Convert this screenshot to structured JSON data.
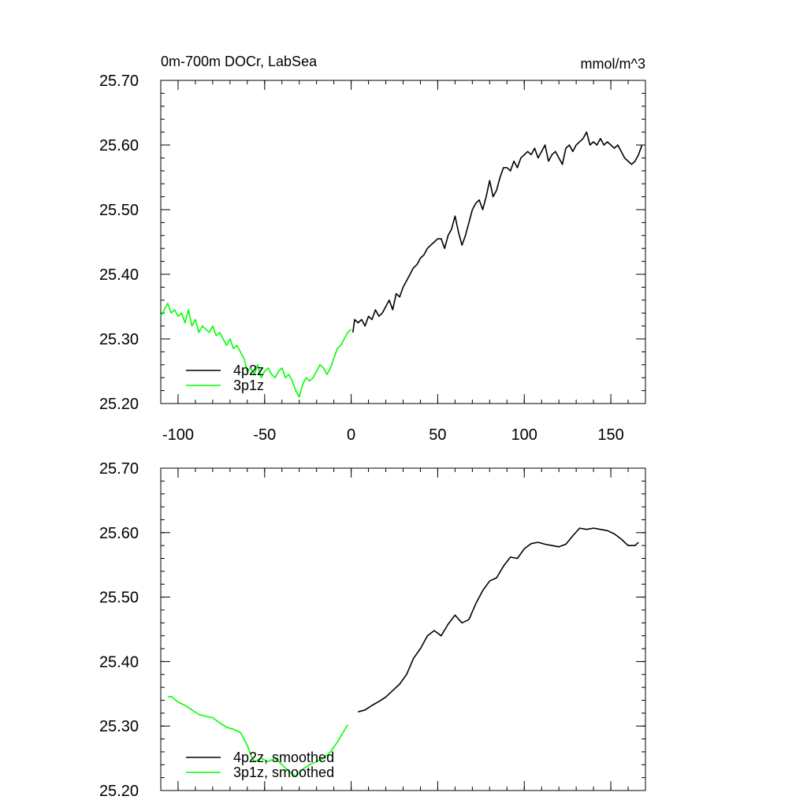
{
  "chart_data": [
    {
      "type": "line",
      "title": "0m-700m DOCr, LabSea",
      "units": "mmol/m^3",
      "xlim": [
        -110,
        170
      ],
      "ylim": [
        25.2,
        25.7
      ],
      "xticks": [
        -100,
        -50,
        0,
        50,
        100,
        150
      ],
      "xtick_labels": [
        "-100",
        "-50",
        "0",
        "50",
        "100",
        "150"
      ],
      "yticks": [
        25.2,
        25.3,
        25.4,
        25.5,
        25.6,
        25.7
      ],
      "ytick_labels": [
        "25.20",
        "25.30",
        "25.40",
        "25.50",
        "25.60",
        "25.70"
      ],
      "legend_position": "bottom-left",
      "series": [
        {
          "name": "4p2z",
          "color": "#000000",
          "x": [
            1,
            2,
            4,
            6,
            8,
            10,
            12,
            14,
            16,
            18,
            20,
            22,
            24,
            26,
            28,
            30,
            32,
            34,
            36,
            38,
            40,
            42,
            44,
            46,
            48,
            50,
            52,
            54,
            56,
            58,
            60,
            62,
            64,
            66,
            68,
            70,
            72,
            74,
            76,
            78,
            80,
            82,
            84,
            86,
            88,
            90,
            92,
            94,
            96,
            98,
            100,
            102,
            104,
            106,
            108,
            110,
            112,
            114,
            116,
            118,
            120,
            122,
            124,
            126,
            128,
            130,
            132,
            134,
            136,
            138,
            140,
            142,
            144,
            146,
            148,
            150,
            152,
            154,
            156,
            158,
            160,
            162,
            164,
            166,
            168
          ],
          "values": [
            25.31,
            25.33,
            25.325,
            25.33,
            25.32,
            25.335,
            25.33,
            25.345,
            25.335,
            25.34,
            25.35,
            25.36,
            25.345,
            25.37,
            25.365,
            25.38,
            25.39,
            25.4,
            25.41,
            25.415,
            25.425,
            25.43,
            25.44,
            25.445,
            25.45,
            25.455,
            25.455,
            25.44,
            25.46,
            25.47,
            25.49,
            25.465,
            25.445,
            25.46,
            25.48,
            25.5,
            25.51,
            25.515,
            25.5,
            25.52,
            25.545,
            25.52,
            25.53,
            25.55,
            25.565,
            25.565,
            25.56,
            25.575,
            25.565,
            25.58,
            25.585,
            25.59,
            25.585,
            25.595,
            25.58,
            25.59,
            25.6,
            25.575,
            25.585,
            25.59,
            25.58,
            25.57,
            25.595,
            25.6,
            25.59,
            25.6,
            25.605,
            25.61,
            25.62,
            25.6,
            25.605,
            25.6,
            25.61,
            25.6,
            25.605,
            25.6,
            25.595,
            25.6,
            25.59,
            25.58,
            25.575,
            25.57,
            25.575,
            25.585,
            25.6
          ]
        },
        {
          "name": "3p1z",
          "color": "#00ff00",
          "x": [
            -110,
            -108,
            -106,
            -104,
            -102,
            -100,
            -98,
            -96,
            -94,
            -92,
            -90,
            -88,
            -86,
            -84,
            -82,
            -80,
            -78,
            -76,
            -74,
            -72,
            -70,
            -68,
            -66,
            -64,
            -62,
            -60,
            -58,
            -56,
            -54,
            -52,
            -50,
            -48,
            -46,
            -44,
            -42,
            -40,
            -38,
            -36,
            -34,
            -32,
            -30,
            -28,
            -26,
            -24,
            -22,
            -20,
            -18,
            -16,
            -14,
            -12,
            -10,
            -8,
            -6,
            -4,
            -2,
            0
          ],
          "values": [
            25.335,
            25.345,
            25.355,
            25.34,
            25.345,
            25.335,
            25.34,
            25.325,
            25.345,
            25.32,
            25.33,
            25.31,
            25.32,
            25.315,
            25.31,
            25.32,
            25.305,
            25.31,
            25.3,
            25.29,
            25.3,
            25.285,
            25.29,
            25.28,
            25.27,
            25.25,
            25.255,
            25.245,
            25.26,
            25.24,
            25.25,
            25.255,
            25.245,
            25.24,
            25.25,
            25.255,
            25.24,
            25.245,
            25.235,
            25.22,
            25.21,
            25.23,
            25.24,
            25.235,
            25.24,
            25.25,
            25.26,
            25.255,
            25.245,
            25.255,
            25.27,
            25.285,
            25.29,
            25.3,
            25.31,
            25.315
          ]
        }
      ]
    },
    {
      "type": "line",
      "xlim": [
        -110,
        170
      ],
      "ylim": [
        25.2,
        25.7
      ],
      "xticks": [
        -100,
        -50,
        0,
        50,
        100,
        150
      ],
      "yticks": [
        25.2,
        25.3,
        25.4,
        25.5,
        25.6,
        25.7
      ],
      "ytick_labels": [
        "25.20",
        "25.30",
        "25.40",
        "25.50",
        "25.60",
        "25.70"
      ],
      "legend_position": "bottom-left",
      "series": [
        {
          "name": "4p2z, smoothed",
          "color": "#000000",
          "x": [
            4,
            8,
            12,
            16,
            20,
            24,
            28,
            32,
            36,
            40,
            44,
            48,
            52,
            56,
            60,
            64,
            68,
            72,
            76,
            80,
            84,
            88,
            92,
            96,
            100,
            104,
            108,
            112,
            116,
            120,
            124,
            128,
            132,
            136,
            140,
            144,
            148,
            152,
            156,
            160,
            164,
            166
          ],
          "values": [
            25.322,
            25.325,
            25.332,
            25.338,
            25.345,
            25.355,
            25.365,
            25.38,
            25.405,
            25.42,
            25.44,
            25.448,
            25.44,
            25.458,
            25.472,
            25.46,
            25.465,
            25.49,
            25.51,
            25.525,
            25.53,
            25.548,
            25.562,
            25.56,
            25.575,
            25.583,
            25.585,
            25.582,
            25.58,
            25.578,
            25.582,
            25.595,
            25.607,
            25.605,
            25.607,
            25.605,
            25.603,
            25.598,
            25.59,
            25.58,
            25.58,
            25.585
          ]
        },
        {
          "name": "3p1z, smoothed",
          "color": "#00ff00",
          "x": [
            -106,
            -104,
            -100,
            -96,
            -92,
            -88,
            -84,
            -80,
            -76,
            -72,
            -68,
            -64,
            -60,
            -58,
            -56,
            -52,
            -48,
            -44,
            -40,
            -36,
            -32,
            -28,
            -24,
            -20,
            -16,
            -12,
            -8,
            -4,
            -2
          ],
          "values": [
            25.345,
            25.346,
            25.337,
            25.332,
            25.325,
            25.318,
            25.315,
            25.313,
            25.305,
            25.298,
            25.295,
            25.29,
            25.27,
            25.255,
            25.245,
            25.25,
            25.245,
            25.25,
            25.24,
            25.23,
            25.222,
            25.233,
            25.24,
            25.245,
            25.25,
            25.26,
            25.275,
            25.293,
            25.302
          ]
        }
      ]
    }
  ]
}
